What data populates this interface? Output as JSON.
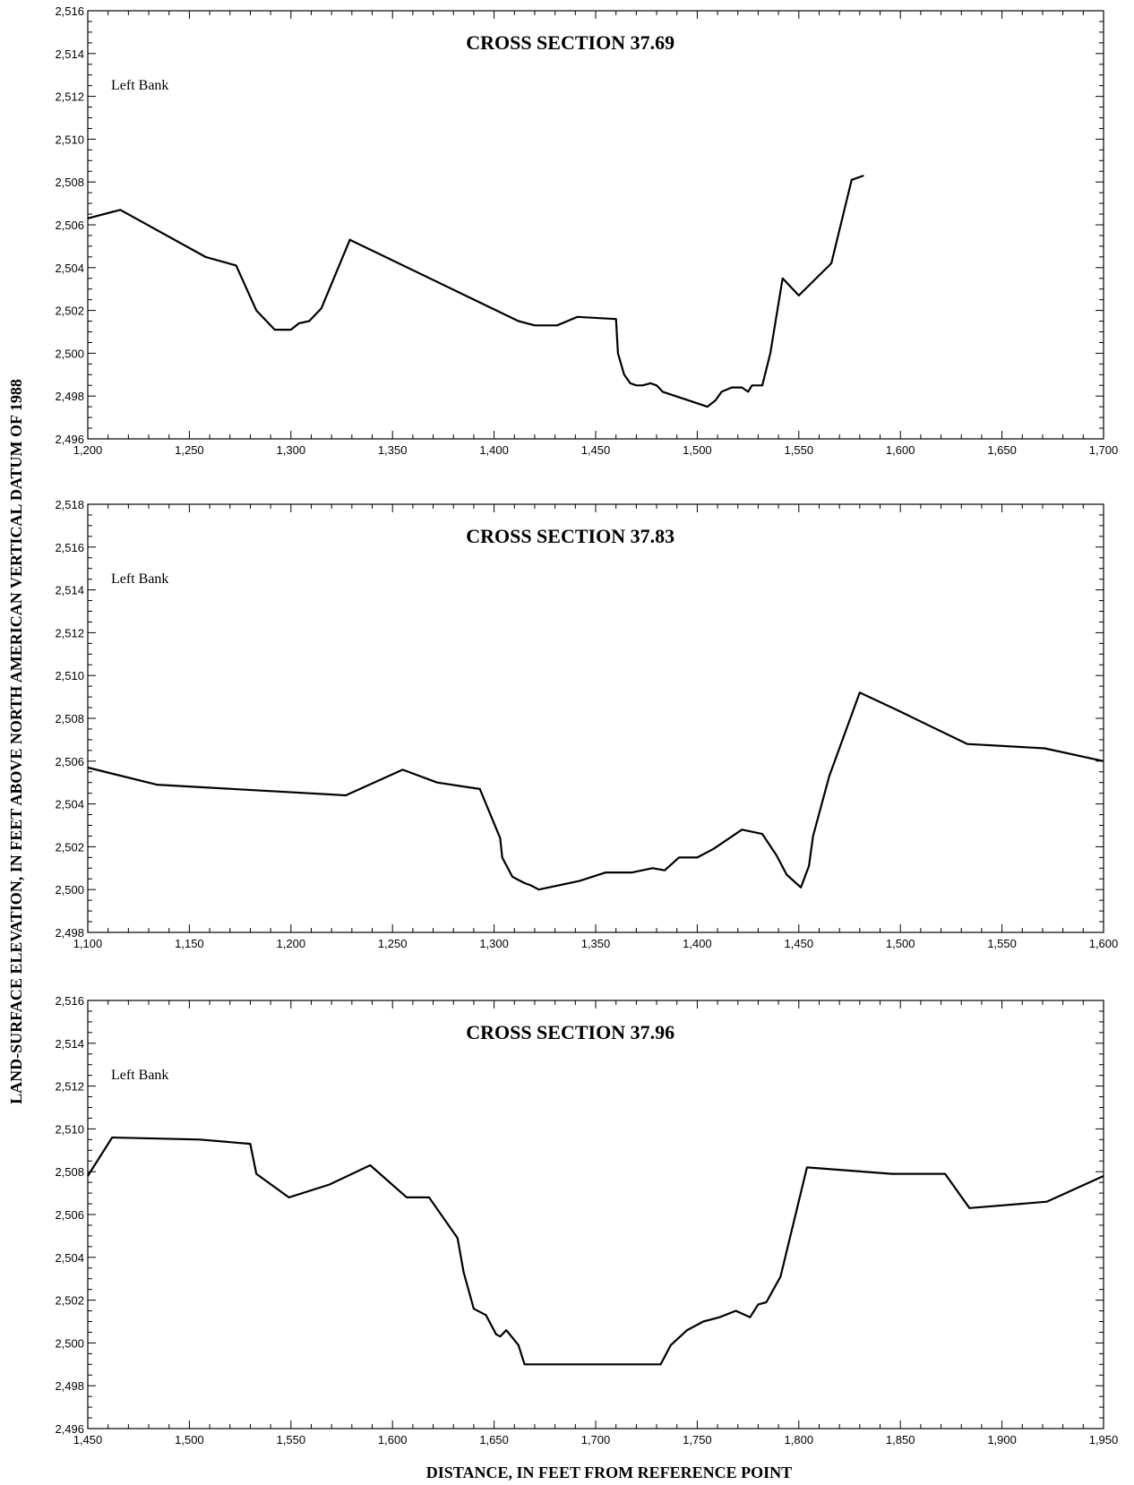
{
  "figure": {
    "ylabel": "LAND-SURFACE ELEVATION, IN FEET ABOVE NORTH AMERICAN VERTICAL DATUM OF 1988",
    "xlabel": "DISTANCE, IN FEET FROM REFERENCE POINT"
  },
  "chart_data": [
    {
      "type": "line",
      "title": "CROSS SECTION 37.69",
      "annotation": "Left Bank",
      "xlim": [
        1200,
        1700
      ],
      "ylim": [
        2496,
        2516
      ],
      "x_ticks": [
        1200,
        1250,
        1300,
        1350,
        1400,
        1450,
        1500,
        1550,
        1600,
        1650,
        1700
      ],
      "x_tick_labels": [
        "1,200",
        "1,250",
        "1,300",
        "1,350",
        "1,400",
        "1,450",
        "1,500",
        "1,550",
        "1,600",
        "1,650",
        "1,700"
      ],
      "y_ticks": [
        2496,
        2498,
        2500,
        2502,
        2504,
        2506,
        2508,
        2510,
        2512,
        2514,
        2516
      ],
      "y_tick_labels": [
        "2,496",
        "2,498",
        "2,500",
        "2,502",
        "2,504",
        "2,506",
        "2,508",
        "2,510",
        "2,512",
        "2,514",
        "2,516"
      ],
      "grid": false,
      "series": [
        {
          "color": "#000000",
          "x": [
            1200,
            1216,
            1258,
            1273,
            1283,
            1286,
            1292,
            1300,
            1304,
            1309,
            1315,
            1329,
            1412,
            1420,
            1431,
            1441,
            1460,
            1461,
            1464,
            1467,
            1470,
            1473,
            1477,
            1480,
            1483,
            1505,
            1509,
            1512,
            1517,
            1522,
            1525,
            1527,
            1532,
            1536,
            1542,
            1550,
            1566,
            1576,
            1582
          ],
          "y": [
            2506.3,
            2506.7,
            2504.5,
            2504.1,
            2502.0,
            2501.7,
            2501.1,
            2501.1,
            2501.4,
            2501.5,
            2502.1,
            2505.3,
            2501.5,
            2501.3,
            2501.3,
            2501.7,
            2501.6,
            2500.0,
            2499.0,
            2498.6,
            2498.5,
            2498.5,
            2498.6,
            2498.5,
            2498.2,
            2497.5,
            2497.8,
            2498.2,
            2498.4,
            2498.4,
            2498.2,
            2498.5,
            2498.5,
            2500.0,
            2503.5,
            2502.7,
            2504.2,
            2508.1,
            2508.3
          ]
        }
      ]
    },
    {
      "type": "line",
      "title": "CROSS SECTION 37.83",
      "annotation": "Left Bank",
      "xlim": [
        1100,
        1600
      ],
      "ylim": [
        2498,
        2518
      ],
      "x_ticks": [
        1100,
        1150,
        1200,
        1250,
        1300,
        1350,
        1400,
        1450,
        1500,
        1550,
        1600
      ],
      "x_tick_labels": [
        "1,100",
        "1,150",
        "1,200",
        "1,250",
        "1,300",
        "1,350",
        "1,400",
        "1,450",
        "1,500",
        "1,550",
        "1,600"
      ],
      "y_ticks": [
        2498,
        2500,
        2502,
        2504,
        2506,
        2508,
        2510,
        2512,
        2514,
        2516,
        2518
      ],
      "y_tick_labels": [
        "2,498",
        "2,500",
        "2,502",
        "2,504",
        "2,506",
        "2,508",
        "2,510",
        "2,512",
        "2,514",
        "2,516",
        "2,518"
      ],
      "grid": false,
      "series": [
        {
          "color": "#000000",
          "x": [
            1100,
            1134,
            1227,
            1255,
            1272,
            1293,
            1303,
            1304,
            1309,
            1315,
            1318,
            1322,
            1342,
            1355,
            1368,
            1378,
            1384,
            1391,
            1400,
            1408,
            1422,
            1432,
            1439,
            1444,
            1451,
            1455,
            1457,
            1465,
            1480,
            1498,
            1533,
            1571,
            1600
          ],
          "y": [
            2505.7,
            2504.9,
            2504.4,
            2505.6,
            2505.0,
            2504.7,
            2502.4,
            2501.5,
            2500.6,
            2500.3,
            2500.2,
            2500.0,
            2500.4,
            2500.8,
            2500.8,
            2501.0,
            2500.9,
            2501.5,
            2501.5,
            2501.9,
            2502.8,
            2502.6,
            2501.6,
            2500.7,
            2500.1,
            2501.1,
            2502.5,
            2505.3,
            2509.2,
            2508.4,
            2506.8,
            2506.6,
            2506.0
          ]
        }
      ]
    },
    {
      "type": "line",
      "title": "CROSS SECTION 37.96",
      "annotation": "Left Bank",
      "xlim": [
        1450,
        1950
      ],
      "ylim": [
        2496,
        2516
      ],
      "x_ticks": [
        1450,
        1500,
        1550,
        1600,
        1650,
        1700,
        1750,
        1800,
        1850,
        1900,
        1950
      ],
      "x_tick_labels": [
        "1,450",
        "1,500",
        "1,550",
        "1,600",
        "1,650",
        "1,700",
        "1,750",
        "1,800",
        "1,850",
        "1,900",
        "1,950"
      ],
      "y_ticks": [
        2496,
        2498,
        2500,
        2502,
        2504,
        2506,
        2508,
        2510,
        2512,
        2514,
        2516
      ],
      "y_tick_labels": [
        "2,496",
        "2,498",
        "2,500",
        "2,502",
        "2,504",
        "2,506",
        "2,508",
        "2,510",
        "2,512",
        "2,514",
        "2,516"
      ],
      "grid": false,
      "series": [
        {
          "color": "#000000",
          "x": [
            1450,
            1462,
            1505,
            1530,
            1533,
            1549,
            1569,
            1589,
            1607,
            1618,
            1632,
            1635,
            1640,
            1646,
            1651,
            1653,
            1656,
            1662,
            1665,
            1732,
            1737,
            1745,
            1753,
            1761,
            1769,
            1776,
            1780,
            1784,
            1791,
            1804,
            1846,
            1872,
            1884,
            1922,
            1950
          ],
          "y": [
            2507.8,
            2509.6,
            2509.5,
            2509.3,
            2507.9,
            2506.8,
            2507.4,
            2508.3,
            2506.8,
            2506.8,
            2504.9,
            2503.3,
            2501.6,
            2501.3,
            2500.4,
            2500.3,
            2500.6,
            2499.9,
            2499.0,
            2499.0,
            2499.9,
            2500.6,
            2501.0,
            2501.2,
            2501.5,
            2501.2,
            2501.8,
            2501.9,
            2503.1,
            2508.2,
            2507.9,
            2507.9,
            2506.3,
            2506.6,
            2507.8
          ]
        }
      ]
    }
  ]
}
